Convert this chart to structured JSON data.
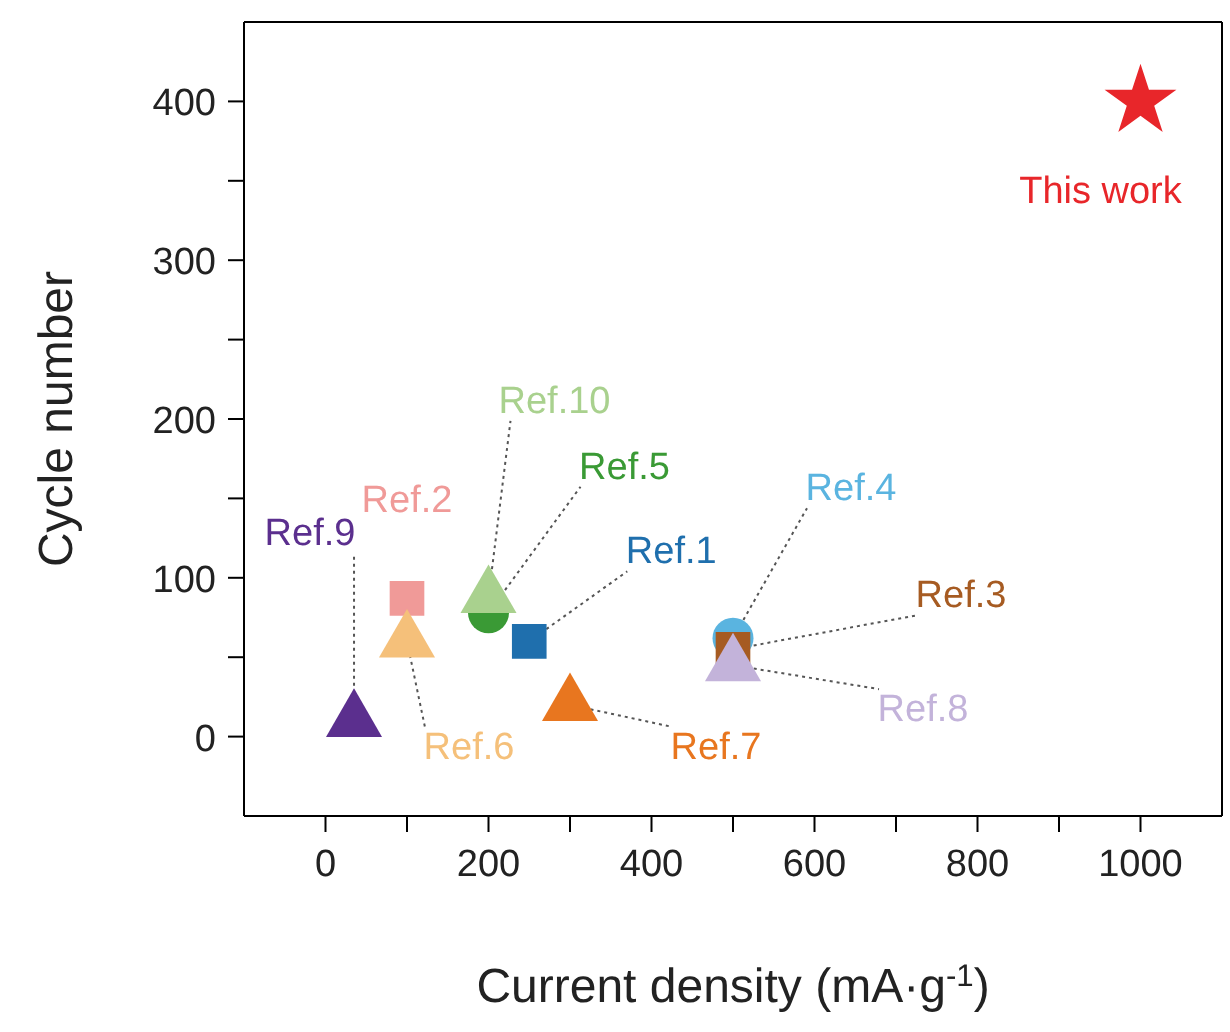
{
  "chart_data": {
    "type": "scatter",
    "xlabel": "Current density (mA·g$^{-1}$)",
    "ylabel": "Cycle number",
    "xlim": [
      -100,
      1100
    ],
    "ylim": [
      -50,
      450
    ],
    "xticks": [
      0,
      {
        "value": 100,
        "label": null
      },
      200,
      {
        "value": 300,
        "label": null
      },
      400,
      {
        "value": 500,
        "label": null
      },
      600,
      {
        "value": 700,
        "label": null
      },
      800,
      {
        "value": 900,
        "label": null
      },
      1000
    ],
    "yticks": [
      0,
      {
        "value": 50,
        "label": null
      },
      100,
      {
        "value": 150,
        "label": null
      },
      200,
      {
        "value": 250,
        "label": null
      },
      300,
      {
        "value": 350,
        "label": null
      },
      400
    ],
    "grid": false,
    "legend": false,
    "series": [
      {
        "name": "This work",
        "color": "#e8262a",
        "marker": "star",
        "x": [
          1000
        ],
        "values": [
          400
        ]
      },
      {
        "name": "Ref.1",
        "color": "#1f6fad",
        "marker": "square",
        "x": [
          250
        ],
        "values": [
          60
        ]
      },
      {
        "name": "Ref.2",
        "color": "#f09a98",
        "marker": "square",
        "x": [
          100
        ],
        "values": [
          87
        ]
      },
      {
        "name": "Ref.3",
        "color": "#a65b22",
        "marker": "square",
        "x": [
          500
        ],
        "values": [
          55
        ]
      },
      {
        "name": "Ref.4",
        "color": "#5ab4e0",
        "marker": "circle",
        "x": [
          500
        ],
        "values": [
          62
        ]
      },
      {
        "name": "Ref.5",
        "color": "#3a9a35",
        "marker": "circle",
        "x": [
          200
        ],
        "values": [
          78
        ]
      },
      {
        "name": "Ref.6",
        "color": "#f5c07a",
        "marker": "triangle",
        "x": [
          100
        ],
        "values": [
          60
        ]
      },
      {
        "name": "Ref.7",
        "color": "#e8761f",
        "marker": "triangle",
        "x": [
          300
        ],
        "values": [
          20
        ]
      },
      {
        "name": "Ref.8",
        "color": "#c3b3da",
        "marker": "triangle",
        "x": [
          500
        ],
        "values": [
          45
        ]
      },
      {
        "name": "Ref.9",
        "color": "#5b2f8e",
        "marker": "triangle",
        "x": [
          35
        ],
        "values": [
          10
        ]
      },
      {
        "name": "Ref.10",
        "color": "#a9d18e",
        "marker": "triangle",
        "x": [
          200
        ],
        "values": [
          88
        ]
      }
    ]
  }
}
